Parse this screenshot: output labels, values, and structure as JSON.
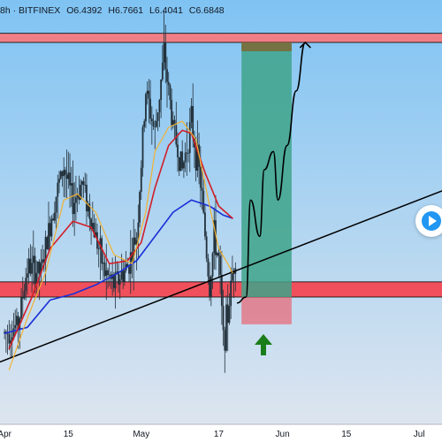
{
  "header": {
    "symbol": "8h · BITFINEX",
    "open": "O6.4392",
    "high": "H6.7661",
    "low": "L6.4041",
    "close": "C6.6848"
  },
  "colors": {
    "bg_top": "#7fc3f3",
    "bg_bottom": "#dde5ef",
    "resistance_zone": "#f07f85",
    "support_zone": "#f0505b",
    "target_zone": "#3ea38a",
    "stop_zone": "#f0505b",
    "ema_fast": "#f2b233",
    "ema_mid": "#d11f28",
    "ema_slow": "#1a2fd6",
    "candles": "#22303a",
    "trendline": "#000000",
    "up_arrow": "#1a7d1a"
  },
  "chart_data": {
    "type": "line",
    "x_ticks": [
      "Apr",
      "15",
      "May",
      "17",
      "Jun",
      "15",
      "Jul"
    ],
    "x_tick_days": [
      0,
      14,
      30,
      47,
      61,
      75,
      91
    ],
    "ylim": [
      5.6,
      7.0
    ],
    "price_path": [
      [
        0,
        5.9
      ],
      [
        3,
        5.93
      ],
      [
        5,
        6.12
      ],
      [
        8,
        6.1
      ],
      [
        11,
        6.34
      ],
      [
        13,
        6.45
      ],
      [
        15,
        6.33
      ],
      [
        17,
        6.4
      ],
      [
        19,
        6.28
      ],
      [
        22,
        6.1
      ],
      [
        24,
        6.06
      ],
      [
        27,
        6.12
      ],
      [
        29,
        6.22
      ],
      [
        31,
        6.7
      ],
      [
        33,
        6.56
      ],
      [
        35,
        6.82
      ],
      [
        37,
        6.58
      ],
      [
        39,
        6.44
      ],
      [
        41,
        6.6
      ],
      [
        43,
        6.4
      ],
      [
        45,
        6.05
      ],
      [
        46,
        6.22
      ],
      [
        47,
        6.14
      ],
      [
        48,
        5.88
      ],
      [
        49,
        5.96
      ],
      [
        50,
        6.1
      ],
      [
        51,
        6.2
      ]
    ],
    "ema_fast": [
      [
        1,
        5.78
      ],
      [
        5,
        5.95
      ],
      [
        9,
        6.1
      ],
      [
        13,
        6.34
      ],
      [
        16,
        6.36
      ],
      [
        20,
        6.3
      ],
      [
        24,
        6.16
      ],
      [
        28,
        6.13
      ],
      [
        31,
        6.3
      ],
      [
        33,
        6.5
      ],
      [
        36,
        6.58
      ],
      [
        39,
        6.6
      ],
      [
        42,
        6.54
      ],
      [
        45,
        6.32
      ],
      [
        47,
        6.18
      ],
      [
        49,
        6.13
      ],
      [
        50,
        6.1
      ]
    ],
    "ema_mid": [
      [
        1,
        5.85
      ],
      [
        6,
        6.02
      ],
      [
        10,
        6.18
      ],
      [
        15,
        6.27
      ],
      [
        19,
        6.25
      ],
      [
        23,
        6.13
      ],
      [
        27,
        6.14
      ],
      [
        30,
        6.2
      ],
      [
        33,
        6.38
      ],
      [
        36,
        6.52
      ],
      [
        39,
        6.57
      ],
      [
        41,
        6.56
      ],
      [
        44,
        6.43
      ],
      [
        47,
        6.32
      ],
      [
        50,
        6.28
      ]
    ],
    "ema_slow": [
      [
        0,
        5.9
      ],
      [
        5,
        5.92
      ],
      [
        10,
        6.01
      ],
      [
        15,
        6.03
      ],
      [
        20,
        6.06
      ],
      [
        25,
        6.1
      ],
      [
        29,
        6.14
      ],
      [
        33,
        6.22
      ],
      [
        37,
        6.3
      ],
      [
        41,
        6.34
      ],
      [
        45,
        6.32
      ],
      [
        48,
        6.29
      ],
      [
        50,
        6.28
      ]
    ],
    "trendline": [
      [
        -2,
        5.8
      ],
      [
        96,
        6.37
      ]
    ],
    "projection": [
      [
        51,
        6.0
      ],
      [
        53,
        6.02
      ],
      [
        54,
        6.34
      ],
      [
        56,
        6.22
      ],
      [
        57,
        6.44
      ],
      [
        59,
        6.5
      ],
      [
        60,
        6.34
      ],
      [
        62,
        6.52
      ],
      [
        64,
        6.7
      ],
      [
        66,
        6.86
      ]
    ],
    "zones": {
      "resistance": [
        6.86,
        6.89
      ],
      "support": [
        6.02,
        6.07
      ],
      "target": {
        "x": [
          52,
          63
        ],
        "y": [
          6.02,
          6.86
        ]
      },
      "stop": {
        "x": [
          52,
          63
        ],
        "y": [
          5.93,
          6.02
        ]
      }
    }
  }
}
